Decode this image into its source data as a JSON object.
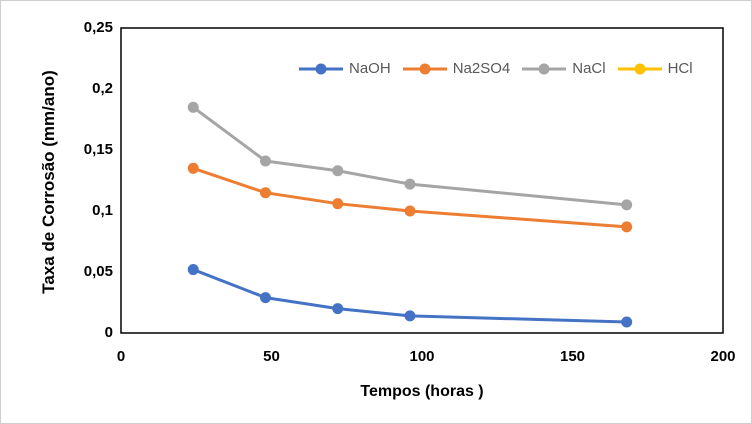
{
  "chart_data": {
    "type": "line",
    "title": "",
    "xlabel": "Tempos (horas )",
    "ylabel": "Taxa de Corrosão (mm/ano)",
    "x": [
      24,
      48,
      72,
      96,
      168
    ],
    "series": [
      {
        "name": "NaOH",
        "color": "#4472C4",
        "values": [
          0.052,
          0.029,
          0.02,
          0.014,
          0.009
        ]
      },
      {
        "name": "Na2SO4",
        "color": "#ED7D31",
        "values": [
          0.135,
          0.115,
          0.106,
          0.1,
          0.087
        ]
      },
      {
        "name": "NaCl",
        "color": "#A5A5A5",
        "values": [
          0.185,
          0.141,
          0.133,
          0.122,
          0.105
        ]
      },
      {
        "name": "HCl",
        "color": "#FFC000",
        "values": []
      }
    ],
    "xlim": [
      0,
      200
    ],
    "ylim": [
      0,
      0.25
    ],
    "x_ticks": [
      {
        "value": 0,
        "label": "0"
      },
      {
        "value": 50,
        "label": "50"
      },
      {
        "value": 100,
        "label": "100"
      },
      {
        "value": 150,
        "label": "150"
      },
      {
        "value": 200,
        "label": "200"
      }
    ],
    "y_ticks": [
      {
        "value": 0,
        "label": "0"
      },
      {
        "value": 0.05,
        "label": "0,05"
      },
      {
        "value": 0.1,
        "label": "0,1"
      },
      {
        "value": 0.15,
        "label": "0,15"
      },
      {
        "value": 0.2,
        "label": "0,2"
      },
      {
        "value": 0.25,
        "label": "0,25"
      }
    ],
    "grid": false,
    "legend_position": "top",
    "marker": "circle",
    "plot_border_color": "#000000",
    "legend_text_color": "#595959"
  }
}
